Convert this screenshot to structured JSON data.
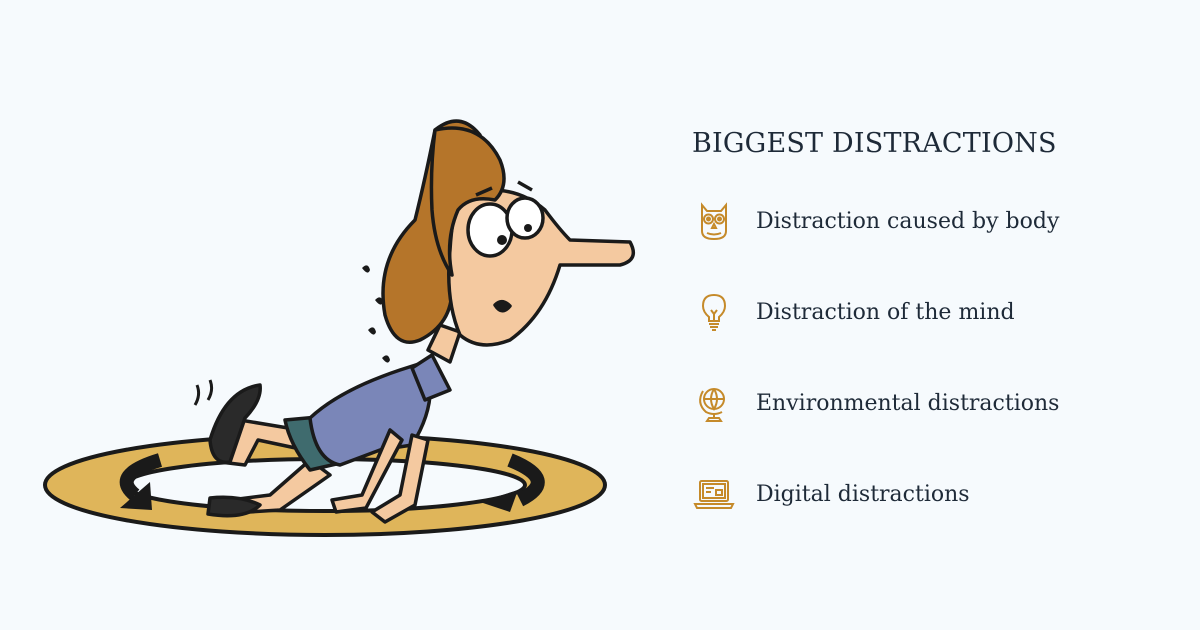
{
  "heading": "BIGGEST DISTRACTIONS",
  "items": [
    {
      "label": "Distraction caused by body",
      "icon": "owl-icon"
    },
    {
      "label": "Distraction of the mind",
      "icon": "lightbulb-icon"
    },
    {
      "label": "Environmental distractions",
      "icon": "globe-icon"
    },
    {
      "label": "Digital distractions",
      "icon": "laptop-icon"
    }
  ],
  "colors": {
    "background": "#f6fafd",
    "text": "#1e2a38",
    "icon_accent": "#c58a2a",
    "track_gold": "#dfb55a",
    "hair_brown": "#b5752a",
    "shirt_blue": "#7a86b8",
    "shorts_teal": "#3f6b6e"
  }
}
